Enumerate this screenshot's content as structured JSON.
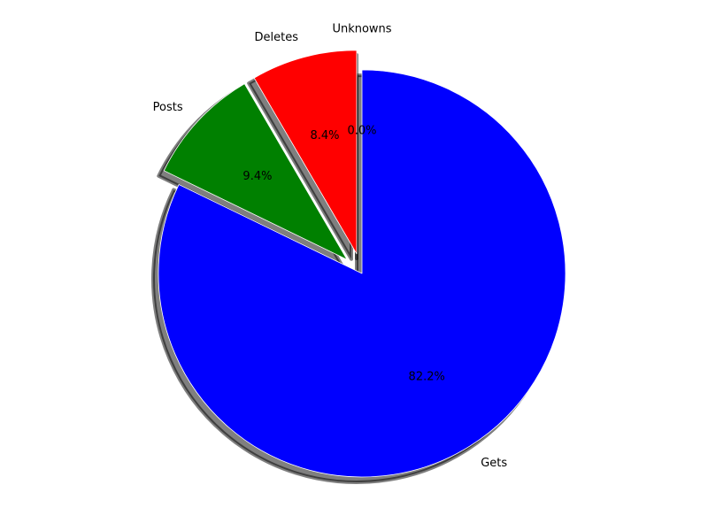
{
  "chart_data": {
    "type": "pie",
    "title": "",
    "start_angle_deg": 90,
    "direction": "clockwise",
    "shadow": true,
    "slices": [
      {
        "label": "Gets",
        "value": 82.2,
        "pct_label": "82.2%",
        "color": "#0000ff",
        "exploded": false
      },
      {
        "label": "Posts",
        "value": 9.4,
        "pct_label": "9.4%",
        "color": "#008000",
        "exploded": true
      },
      {
        "label": "Deletes",
        "value": 8.4,
        "pct_label": "8.4%",
        "color": "#ff0000",
        "exploded": true
      },
      {
        "label": "Unknowns",
        "value": 0.0,
        "pct_label": "0.0%",
        "color": "#808080",
        "exploded": true
      }
    ]
  }
}
